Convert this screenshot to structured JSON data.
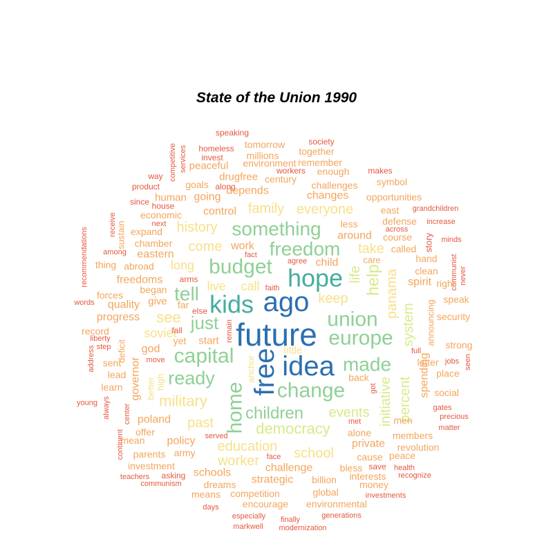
{
  "title": "State of the Union 1990",
  "palette": {
    "blue": "#2b6fb0",
    "teal": "#46ad9f",
    "green": "#8fd096",
    "lime": "#d7ea8a",
    "yellow": "#f7e08a",
    "orange": "#f4a55b",
    "red": "#e5573f"
  },
  "words": [
    {
      "text": "future",
      "color": "blue",
      "rot": 0
    },
    {
      "text": "ago",
      "color": "blue",
      "rot": 0
    },
    {
      "text": "idea",
      "color": "blue",
      "rot": 0
    },
    {
      "text": "free",
      "color": "blue",
      "rot": -90
    },
    {
      "text": "kids",
      "color": "teal",
      "rot": 0
    },
    {
      "text": "hope",
      "color": "teal",
      "rot": 0
    },
    {
      "text": "union",
      "color": "green",
      "rot": 0
    },
    {
      "text": "europe",
      "color": "green",
      "rot": 0
    },
    {
      "text": "change",
      "color": "green",
      "rot": 0
    },
    {
      "text": "made",
      "color": "green",
      "rot": 0
    },
    {
      "text": "budget",
      "color": "green",
      "rot": 0
    },
    {
      "text": "freedom",
      "color": "green",
      "rot": 0
    },
    {
      "text": "something",
      "color": "green",
      "rot": 0
    },
    {
      "text": "capital",
      "color": "green",
      "rot": 0
    },
    {
      "text": "ready",
      "color": "green",
      "rot": 0
    },
    {
      "text": "tell",
      "color": "green",
      "rot": 0
    },
    {
      "text": "home",
      "color": "green",
      "rot": -90
    },
    {
      "text": "children",
      "color": "green",
      "rot": 0
    },
    {
      "text": "just",
      "color": "green",
      "rot": 0
    },
    {
      "text": "democracy",
      "color": "lime",
      "rot": 0
    },
    {
      "text": "help",
      "color": "lime",
      "rot": -90
    },
    {
      "text": "life",
      "color": "lime",
      "rot": -90
    },
    {
      "text": "events",
      "color": "lime",
      "rot": 0
    },
    {
      "text": "initiative",
      "color": "lime",
      "rot": -90
    },
    {
      "text": "percent",
      "color": "lime",
      "rot": -90
    },
    {
      "text": "system",
      "color": "lime",
      "rot": -90
    },
    {
      "text": "panama",
      "color": "yellow",
      "rot": -90
    },
    {
      "text": "take",
      "color": "yellow",
      "rot": 0
    },
    {
      "text": "see",
      "color": "yellow",
      "rot": 0
    },
    {
      "text": "military",
      "color": "yellow",
      "rot": 0
    },
    {
      "text": "keep",
      "color": "yellow",
      "rot": 0
    },
    {
      "text": "school",
      "color": "yellow",
      "rot": 0
    },
    {
      "text": "education",
      "color": "yellow",
      "rot": 0
    },
    {
      "text": "worker",
      "color": "yellow",
      "rot": 0
    },
    {
      "text": "history",
      "color": "yellow",
      "rot": 0
    },
    {
      "text": "family",
      "color": "yellow",
      "rot": 0
    },
    {
      "text": "everyone",
      "color": "yellow",
      "rot": 0
    },
    {
      "text": "come",
      "color": "yellow",
      "rot": 0
    },
    {
      "text": "long",
      "color": "yellow",
      "rot": 0
    },
    {
      "text": "live",
      "color": "yellow",
      "rot": 0
    },
    {
      "text": "call",
      "color": "yellow",
      "rot": 0
    },
    {
      "text": "past",
      "color": "yellow",
      "rot": 0
    },
    {
      "text": "anchor",
      "color": "yellow",
      "rot": -90
    },
    {
      "text": "little",
      "color": "yellow",
      "rot": 0
    },
    {
      "text": "soviet",
      "color": "yellow",
      "rot": 0
    },
    {
      "text": "better",
      "color": "yellow",
      "rot": -90
    },
    {
      "text": "high",
      "color": "yellow",
      "rot": -90
    },
    {
      "text": "spending",
      "color": "orange",
      "rot": -90
    },
    {
      "text": "announcing",
      "color": "orange",
      "rot": -90
    },
    {
      "text": "governor",
      "color": "orange",
      "rot": -90
    },
    {
      "text": "speaking",
      "color": "red",
      "rot": 0
    },
    {
      "text": "society",
      "color": "red",
      "rot": 0
    },
    {
      "text": "tomorrow",
      "color": "orange",
      "rot": 0
    },
    {
      "text": "homeless",
      "color": "red",
      "rot": 0
    },
    {
      "text": "millions",
      "color": "orange",
      "rot": 0
    },
    {
      "text": "together",
      "color": "orange",
      "rot": 0
    },
    {
      "text": "competitive",
      "color": "red",
      "rot": -90
    },
    {
      "text": "services",
      "color": "red",
      "rot": -90
    },
    {
      "text": "invest",
      "color": "red",
      "rot": 0
    },
    {
      "text": "peaceful",
      "color": "orange",
      "rot": 0
    },
    {
      "text": "environment",
      "color": "orange",
      "rot": 0
    },
    {
      "text": "remember",
      "color": "orange",
      "rot": 0
    },
    {
      "text": "workers",
      "color": "red",
      "rot": 0
    },
    {
      "text": "enough",
      "color": "orange",
      "rot": 0
    },
    {
      "text": "makes",
      "color": "red",
      "rot": 0
    },
    {
      "text": "way",
      "color": "red",
      "rot": 0
    },
    {
      "text": "drugfree",
      "color": "orange",
      "rot": 0
    },
    {
      "text": "century",
      "color": "orange",
      "rot": 0
    },
    {
      "text": "product",
      "color": "red",
      "rot": 0
    },
    {
      "text": "goals",
      "color": "orange",
      "rot": 0
    },
    {
      "text": "along",
      "color": "red",
      "rot": 0
    },
    {
      "text": "depends",
      "color": "orange",
      "rot": 0
    },
    {
      "text": "challenges",
      "color": "orange",
      "rot": 0
    },
    {
      "text": "symbol",
      "color": "orange",
      "rot": 0
    },
    {
      "text": "human",
      "color": "orange",
      "rot": 0
    },
    {
      "text": "going",
      "color": "orange",
      "rot": 0
    },
    {
      "text": "changes",
      "color": "orange",
      "rot": 0
    },
    {
      "text": "opportunities",
      "color": "orange",
      "rot": 0
    },
    {
      "text": "since",
      "color": "red",
      "rot": 0
    },
    {
      "text": "house",
      "color": "red",
      "rot": 0
    },
    {
      "text": "control",
      "color": "orange",
      "rot": 0
    },
    {
      "text": "east",
      "color": "orange",
      "rot": 0
    },
    {
      "text": "grandchildren",
      "color": "red",
      "rot": 0
    },
    {
      "text": "receive",
      "color": "red",
      "rot": -90
    },
    {
      "text": "economic",
      "color": "orange",
      "rot": 0
    },
    {
      "text": "defense",
      "color": "orange",
      "rot": 0
    },
    {
      "text": "recommendations",
      "color": "red",
      "rot": -90
    },
    {
      "text": "sustain",
      "color": "orange",
      "rot": -90
    },
    {
      "text": "next",
      "color": "red",
      "rot": 0
    },
    {
      "text": "less",
      "color": "orange",
      "rot": 0
    },
    {
      "text": "increase",
      "color": "red",
      "rot": 0
    },
    {
      "text": "expand",
      "color": "orange",
      "rot": 0
    },
    {
      "text": "across",
      "color": "red",
      "rot": 0
    },
    {
      "text": "around",
      "color": "orange",
      "rot": 0
    },
    {
      "text": "course",
      "color": "orange",
      "rot": 0
    },
    {
      "text": "story",
      "color": "red",
      "rot": -90
    },
    {
      "text": "minds",
      "color": "red",
      "rot": 0
    },
    {
      "text": "among",
      "color": "red",
      "rot": 0
    },
    {
      "text": "chamber",
      "color": "orange",
      "rot": 0
    },
    {
      "text": "eastern",
      "color": "orange",
      "rot": 0
    },
    {
      "text": "work",
      "color": "orange",
      "rot": 0
    },
    {
      "text": "called",
      "color": "orange",
      "rot": 0
    },
    {
      "text": "fact",
      "color": "red",
      "rot": 0
    },
    {
      "text": "child",
      "color": "orange",
      "rot": 0
    },
    {
      "text": "hand",
      "color": "orange",
      "rot": 0
    },
    {
      "text": "communist",
      "color": "red",
      "rot": -90
    },
    {
      "text": "thing",
      "color": "orange",
      "rot": 0
    },
    {
      "text": "abroad",
      "color": "orange",
      "rot": 0
    },
    {
      "text": "agree",
      "color": "red",
      "rot": 0
    },
    {
      "text": "care",
      "color": "orange",
      "rot": 0
    },
    {
      "text": "clean",
      "color": "orange",
      "rot": 0
    },
    {
      "text": "never",
      "color": "red",
      "rot": -90
    },
    {
      "text": "freedoms",
      "color": "orange",
      "rot": 0
    },
    {
      "text": "arms",
      "color": "red",
      "rot": 0
    },
    {
      "text": "spirit",
      "color": "orange",
      "rot": 0
    },
    {
      "text": "right",
      "color": "orange",
      "rot": 0
    },
    {
      "text": "began",
      "color": "orange",
      "rot": 0
    },
    {
      "text": "faith",
      "color": "red",
      "rot": 0
    },
    {
      "text": "forces",
      "color": "orange",
      "rot": 0
    },
    {
      "text": "words",
      "color": "red",
      "rot": 0
    },
    {
      "text": "quality",
      "color": "orange",
      "rot": 0
    },
    {
      "text": "give",
      "color": "orange",
      "rot": 0
    },
    {
      "text": "far",
      "color": "orange",
      "rot": 0
    },
    {
      "text": "else",
      "color": "red",
      "rot": 0
    },
    {
      "text": "speak",
      "color": "orange",
      "rot": 0
    },
    {
      "text": "progress",
      "color": "orange",
      "rot": 0
    },
    {
      "text": "security",
      "color": "orange",
      "rot": 0
    },
    {
      "text": "fall",
      "color": "red",
      "rot": 0
    },
    {
      "text": "remain",
      "color": "red",
      "rot": -90
    },
    {
      "text": "record",
      "color": "orange",
      "rot": 0
    },
    {
      "text": "liberty",
      "color": "red",
      "rot": 0
    },
    {
      "text": "strong",
      "color": "orange",
      "rot": 0
    },
    {
      "text": "step",
      "color": "red",
      "rot": 0
    },
    {
      "text": "yet",
      "color": "orange",
      "rot": 0
    },
    {
      "text": "start",
      "color": "orange",
      "rot": 0
    },
    {
      "text": "god",
      "color": "orange",
      "rot": 0
    },
    {
      "text": "deficit",
      "color": "orange",
      "rot": -90
    },
    {
      "text": "full",
      "color": "red",
      "rot": 0
    },
    {
      "text": "address",
      "color": "red",
      "rot": -90
    },
    {
      "text": "sent",
      "color": "orange",
      "rot": 0
    },
    {
      "text": "move",
      "color": "red",
      "rot": 0
    },
    {
      "text": "letter",
      "color": "orange",
      "rot": 0
    },
    {
      "text": "jobs",
      "color": "red",
      "rot": 0
    },
    {
      "text": "seen",
      "color": "red",
      "rot": -90
    },
    {
      "text": "lead",
      "color": "orange",
      "rot": 0
    },
    {
      "text": "place",
      "color": "orange",
      "rot": 0
    },
    {
      "text": "back",
      "color": "orange",
      "rot": 0
    },
    {
      "text": "learn",
      "color": "orange",
      "rot": 0
    },
    {
      "text": "got",
      "color": "red",
      "rot": -90
    },
    {
      "text": "social",
      "color": "orange",
      "rot": 0
    },
    {
      "text": "young",
      "color": "red",
      "rot": 0
    },
    {
      "text": "gates",
      "color": "red",
      "rot": 0
    },
    {
      "text": "always",
      "color": "red",
      "rot": -90
    },
    {
      "text": "center",
      "color": "red",
      "rot": -90
    },
    {
      "text": "precious",
      "color": "red",
      "rot": 0
    },
    {
      "text": "poland",
      "color": "orange",
      "rot": 0
    },
    {
      "text": "met",
      "color": "red",
      "rot": 0
    },
    {
      "text": "men",
      "color": "orange",
      "rot": 0
    },
    {
      "text": "matter",
      "color": "red",
      "rot": 0
    },
    {
      "text": "offer",
      "color": "orange",
      "rot": 0
    },
    {
      "text": "alone",
      "color": "orange",
      "rot": 0
    },
    {
      "text": "members",
      "color": "orange",
      "rot": 0
    },
    {
      "text": "mean",
      "color": "orange",
      "rot": 0
    },
    {
      "text": "policy",
      "color": "orange",
      "rot": 0
    },
    {
      "text": "served",
      "color": "red",
      "rot": 0
    },
    {
      "text": "private",
      "color": "orange",
      "rot": 0
    },
    {
      "text": "revolution",
      "color": "orange",
      "rot": 0
    },
    {
      "text": "continent",
      "color": "red",
      "rot": -90
    },
    {
      "text": "army",
      "color": "orange",
      "rot": 0
    },
    {
      "text": "parents",
      "color": "orange",
      "rot": 0
    },
    {
      "text": "face",
      "color": "red",
      "rot": 0
    },
    {
      "text": "cause",
      "color": "orange",
      "rot": 0
    },
    {
      "text": "peace",
      "color": "orange",
      "rot": 0
    },
    {
      "text": "investment",
      "color": "orange",
      "rot": 0
    },
    {
      "text": "challenge",
      "color": "orange",
      "rot": 0
    },
    {
      "text": "bless",
      "color": "orange",
      "rot": 0
    },
    {
      "text": "save",
      "color": "red",
      "rot": 0
    },
    {
      "text": "health",
      "color": "red",
      "rot": 0
    },
    {
      "text": "schools",
      "color": "orange",
      "rot": 0
    },
    {
      "text": "teachers",
      "color": "red",
      "rot": 0
    },
    {
      "text": "asking",
      "color": "red",
      "rot": 0
    },
    {
      "text": "interests",
      "color": "orange",
      "rot": 0
    },
    {
      "text": "recognize",
      "color": "red",
      "rot": 0
    },
    {
      "text": "communism",
      "color": "red",
      "rot": 0
    },
    {
      "text": "strategic",
      "color": "orange",
      "rot": 0
    },
    {
      "text": "billion",
      "color": "orange",
      "rot": 0
    },
    {
      "text": "money",
      "color": "orange",
      "rot": 0
    },
    {
      "text": "dreams",
      "color": "orange",
      "rot": 0
    },
    {
      "text": "means",
      "color": "orange",
      "rot": 0
    },
    {
      "text": "competition",
      "color": "orange",
      "rot": 0
    },
    {
      "text": "global",
      "color": "orange",
      "rot": 0
    },
    {
      "text": "investments",
      "color": "red",
      "rot": 0
    },
    {
      "text": "encourage",
      "color": "orange",
      "rot": 0
    },
    {
      "text": "environmental",
      "color": "orange",
      "rot": 0
    },
    {
      "text": "days",
      "color": "red",
      "rot": 0
    },
    {
      "text": "especially",
      "color": "red",
      "rot": 0
    },
    {
      "text": "generations",
      "color": "red",
      "rot": 0
    },
    {
      "text": "finally",
      "color": "red",
      "rot": 0
    },
    {
      "text": "markwell",
      "color": "red",
      "rot": 0
    },
    {
      "text": "modernization",
      "color": "red",
      "rot": 0
    }
  ]
}
